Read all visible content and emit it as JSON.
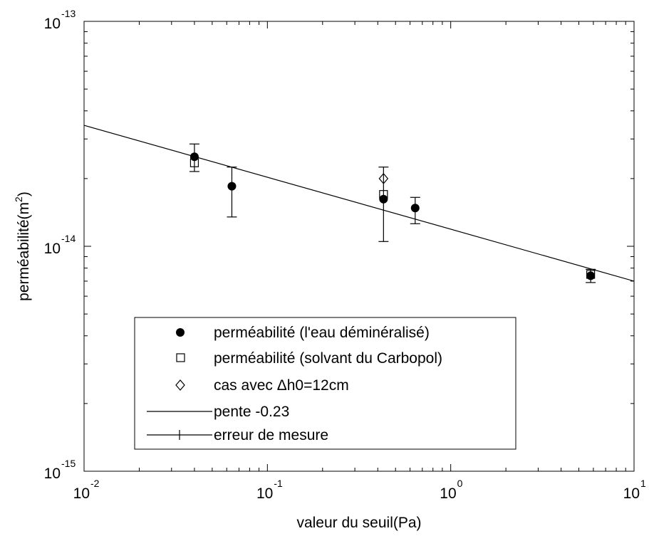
{
  "chart_data": {
    "type": "scatter",
    "x_scale": "log",
    "y_scale": "log",
    "xlim": [
      0.01,
      10
    ],
    "ylim": [
      1e-15,
      1e-13
    ],
    "grid": false,
    "xlabel": "valeur du seuil(Pa)",
    "ylabel_main": "perméabilité(m",
    "ylabel_sup": "2",
    "ylabel_close": ")",
    "x_ticks": [
      {
        "base": "10",
        "exp": "-2",
        "value": 0.01
      },
      {
        "base": "10",
        "exp": "-1",
        "value": 0.1
      },
      {
        "base": "10",
        "exp": "0",
        "value": 1
      },
      {
        "base": "10",
        "exp": "1",
        "value": 10
      }
    ],
    "y_ticks": [
      {
        "base": "10",
        "exp": "-15",
        "value": 1e-15
      },
      {
        "base": "10",
        "exp": "-14",
        "value": 1e-14
      },
      {
        "base": "10",
        "exp": "-13",
        "value": 1e-13
      }
    ],
    "series": [
      {
        "name": "perméabilité (l'eau déminéralisé)",
        "marker": "filled-circle",
        "points": [
          {
            "x": 0.04,
            "y": 2.5e-14
          },
          {
            "x": 0.064,
            "y": 1.85e-14
          },
          {
            "x": 0.43,
            "y": 1.62e-14
          },
          {
            "x": 0.64,
            "y": 1.48e-14
          },
          {
            "x": 5.8,
            "y": 7.4e-15
          }
        ]
      },
      {
        "name": "perméabilité (solvant du Carbopol)",
        "marker": "open-square",
        "points": [
          {
            "x": 0.04,
            "y": 2.35e-14
          },
          {
            "x": 0.43,
            "y": 1.7e-14
          },
          {
            "x": 5.8,
            "y": 7.5e-15
          }
        ]
      },
      {
        "name": "cas avec Δh0=12cm",
        "marker": "open-diamond",
        "points": [
          {
            "x": 0.43,
            "y": 2e-14
          }
        ]
      },
      {
        "name": "pente -0.23",
        "type": "line",
        "points": [
          {
            "x": 0.01,
            "y": 3.45e-14
          },
          {
            "x": 10,
            "y": 7e-15
          }
        ]
      },
      {
        "name": "erreur de mesure",
        "type": "errorbar",
        "bars": [
          {
            "x": 0.04,
            "low": 2.15e-14,
            "high": 2.85e-14
          },
          {
            "x": 0.064,
            "low": 1.35e-14,
            "high": 2.25e-14
          },
          {
            "x": 0.43,
            "low": 1.05e-14,
            "high": 2.25e-14
          },
          {
            "x": 0.64,
            "low": 1.26e-14,
            "high": 1.65e-14
          },
          {
            "x": 5.8,
            "low": 6.9e-15,
            "high": 7.9e-15
          }
        ]
      }
    ],
    "legend": {
      "placement": "bottom-left",
      "entries": [
        {
          "label": "perméabilité (l'eau déminéralisé)",
          "symbol": "filled-circle"
        },
        {
          "label": "perméabilité (solvant du Carbopol)",
          "symbol": "open-square"
        },
        {
          "label": "cas avec Δh0=12cm",
          "symbol": "open-diamond"
        },
        {
          "label": "pente -0.23",
          "symbol": "line"
        },
        {
          "label": "erreur de mesure",
          "symbol": "errorbar-line"
        }
      ]
    }
  }
}
